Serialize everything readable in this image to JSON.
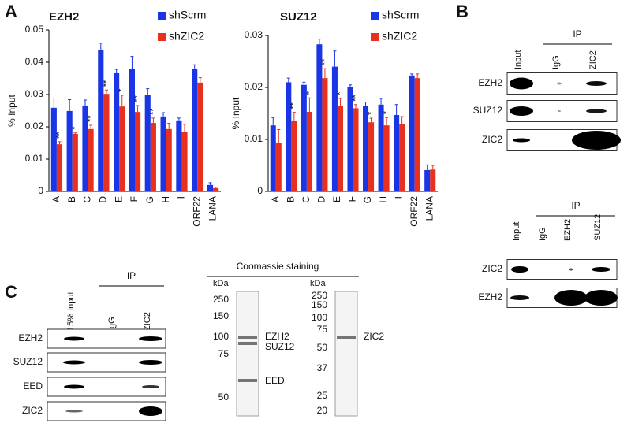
{
  "panel_labels": [
    "A",
    "B",
    "C"
  ],
  "chart_data": [
    {
      "type": "bar",
      "title": "EZH2",
      "ylabel": "% Input",
      "categories": [
        "A",
        "B",
        "C",
        "D",
        "E",
        "F",
        "G",
        "H",
        "I",
        "ORF22",
        "LANA"
      ],
      "ylim": [
        0,
        0.05
      ],
      "yticks": [
        0,
        0.01,
        0.02,
        0.03,
        0.04,
        0.05
      ],
      "series": [
        {
          "name": "shScrm",
          "color": "#1a35e6",
          "values": [
            0.0259,
            0.0249,
            0.0266,
            0.0439,
            0.0366,
            0.0378,
            0.0298,
            0.0232,
            0.022,
            0.038,
            0.002
          ],
          "errors": [
            0.003,
            0.0035,
            0.0017,
            0.002,
            0.0012,
            0.004,
            0.002,
            0.0012,
            0.0007,
            0.0012,
            0.0007
          ]
        },
        {
          "name": "shZIC2",
          "color": "#e8301e",
          "values": [
            0.0146,
            0.0178,
            0.0193,
            0.0302,
            0.0263,
            0.0246,
            0.0212,
            0.0193,
            0.0183,
            0.0337,
            0.001
          ],
          "errors": [
            0.0008,
            0.0003,
            0.0012,
            0.0012,
            0.0035,
            0.002,
            0.0015,
            0.0018,
            0.0025,
            0.0015,
            0.0003
          ]
        }
      ],
      "annotations": [
        "**",
        "*",
        "**",
        "**",
        "*",
        "**",
        "**",
        null,
        null,
        null,
        null
      ]
    },
    {
      "type": "bar",
      "title": "SUZ12",
      "ylabel": "% Input",
      "categories": [
        "A",
        "B",
        "C",
        "D",
        "E",
        "F",
        "G",
        "H",
        "I",
        "ORF22",
        "LANA"
      ],
      "ylim": [
        0,
        0.03
      ],
      "yticks": [
        0,
        0.01,
        0.02,
        0.03
      ],
      "series": [
        {
          "name": "shScrm",
          "color": "#1a35e6",
          "values": [
            0.0127,
            0.021,
            0.0205,
            0.0283,
            0.024,
            0.02,
            0.0164,
            0.0167,
            0.0147,
            0.0223,
            0.0041
          ],
          "errors": [
            0.0015,
            0.0008,
            0.0005,
            0.001,
            0.003,
            0.0005,
            0.0008,
            0.0012,
            0.002,
            0.0003,
            0.001
          ]
        },
        {
          "name": "shZIC2",
          "color": "#e8301e",
          "values": [
            0.0094,
            0.0135,
            0.0153,
            0.0218,
            0.0164,
            0.016,
            0.0133,
            0.0127,
            0.0129,
            0.0218,
            0.0042
          ],
          "errors": [
            0.0025,
            0.0017,
            0.0027,
            0.0018,
            0.0015,
            0.0007,
            0.0008,
            0.0015,
            0.0015,
            0.0008,
            0.0008
          ]
        }
      ],
      "annotations": [
        null,
        "**",
        "*",
        "**",
        "*",
        "**",
        "*",
        "*",
        null,
        null,
        null
      ]
    }
  ],
  "blot_b1": {
    "header": "IP",
    "lanes": [
      "Input",
      "IgG",
      "ZIC2"
    ],
    "rows": [
      "EZH2",
      "SUZ12",
      "ZIC2"
    ]
  },
  "blot_b2": {
    "header": "IP",
    "lanes": [
      "Input",
      "IgG",
      "EZH2",
      "SUZ12"
    ],
    "rows": [
      "ZIC2",
      "EZH2"
    ]
  },
  "blot_c": {
    "header": "IP",
    "lanes": [
      "15% Input",
      "IgG",
      "ZIC2"
    ],
    "rows": [
      "EZH2",
      "SUZ12",
      "EED",
      "ZIC2"
    ]
  },
  "coomassie": {
    "title": "Coomassie staining",
    "gels": [
      {
        "unit": "kDa",
        "markers": [
          250,
          150,
          100,
          75,
          50
        ],
        "bands": [
          "EZH2",
          "SUZ12",
          "EED"
        ]
      },
      {
        "unit": "kDa",
        "markers": [
          250,
          150,
          100,
          75,
          50,
          37,
          25,
          20
        ],
        "bands": [
          "ZIC2"
        ]
      }
    ]
  }
}
